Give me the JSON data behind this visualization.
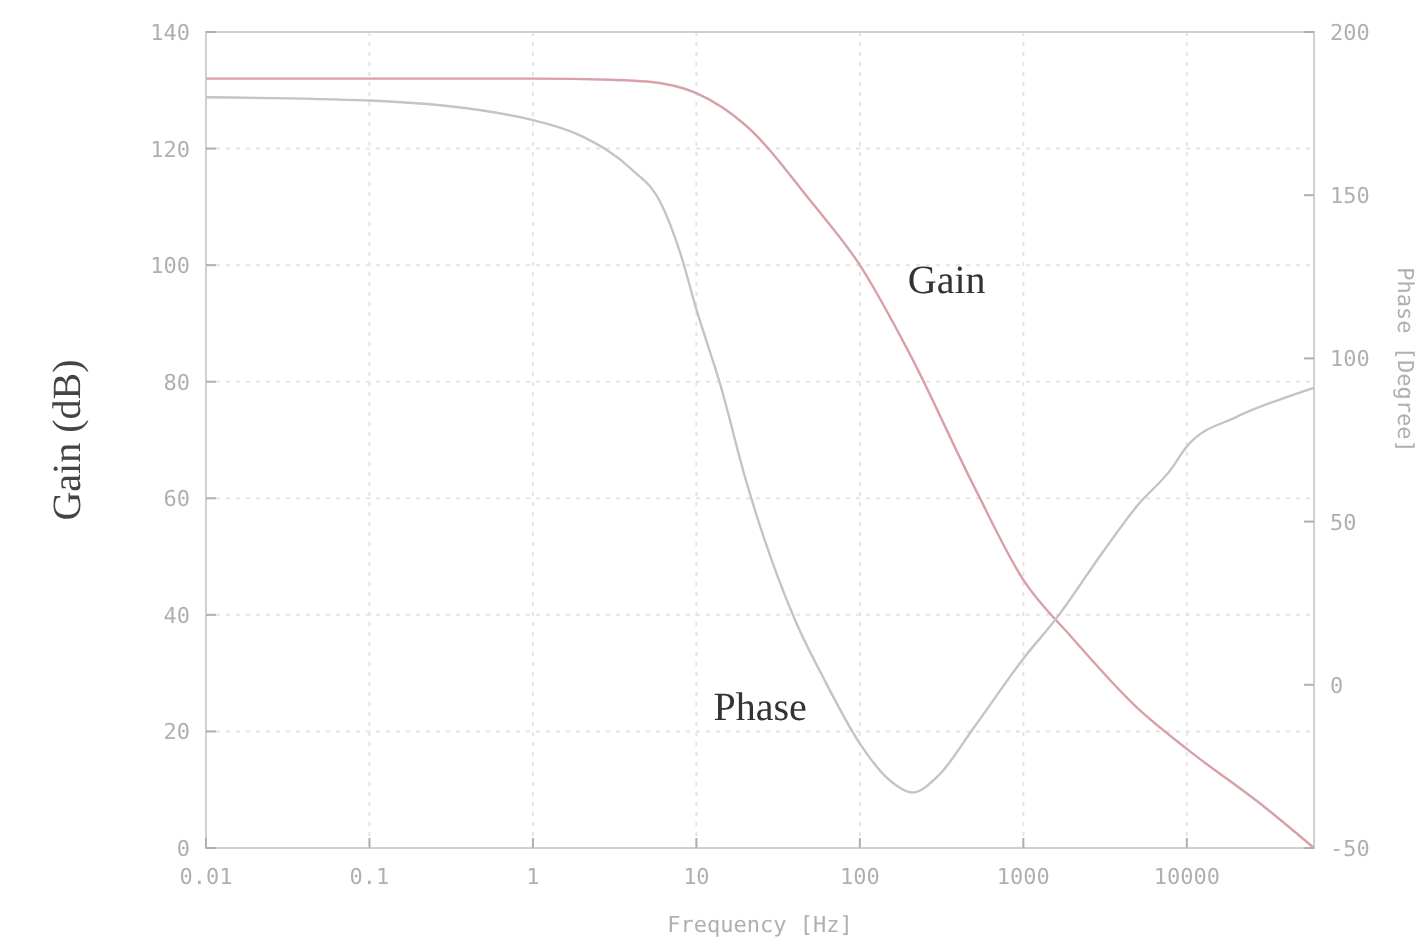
{
  "chart_data": {
    "type": "line",
    "xlabel": "Frequency [Hz]",
    "ylabel": "Gain (dB)",
    "y2label": "Phase [Degree]",
    "log": "x",
    "grid": true,
    "marker": "none",
    "line_style": "solid",
    "xlim": [
      0.01,
      60000
    ],
    "xticks": [
      0.01,
      0.1,
      1,
      10,
      100,
      1000,
      10000
    ],
    "ylim": [
      0,
      140
    ],
    "yticks": [
      0,
      20,
      40,
      60,
      80,
      100,
      120,
      140
    ],
    "y2lim": [
      -50,
      200
    ],
    "y2ticks": [
      -50,
      0,
      50,
      100,
      150,
      200
    ],
    "series": [
      {
        "name": "Gain",
        "color": "#d9a0a8",
        "x": [
          0.01,
          1,
          3,
          5,
          10,
          20,
          50,
          100,
          200,
          500,
          1000,
          2000,
          5000,
          10000,
          30000,
          60000
        ],
        "values": [
          132,
          132,
          131.8,
          131.5,
          129.5,
          124,
          111,
          100,
          85,
          62,
          46,
          36,
          24,
          17,
          7,
          0
        ]
      },
      {
        "name": "Phase",
        "color": "#c4c4c4",
        "axis": "y2",
        "x": [
          0.01,
          0.1,
          1,
          2,
          4,
          6,
          8,
          10,
          14,
          20,
          40,
          60,
          100,
          150,
          210,
          300,
          500,
          1000,
          1600,
          3000,
          5000,
          8000,
          10000,
          20000,
          40000,
          60000
        ],
        "values": [
          180,
          179,
          173,
          168,
          158,
          148,
          132,
          115,
          92,
          63,
          20,
          2,
          -18,
          -29,
          -33,
          -28,
          -13,
          8,
          20.5,
          40,
          55,
          66,
          73,
          82,
          88,
          91
        ]
      }
    ]
  }
}
